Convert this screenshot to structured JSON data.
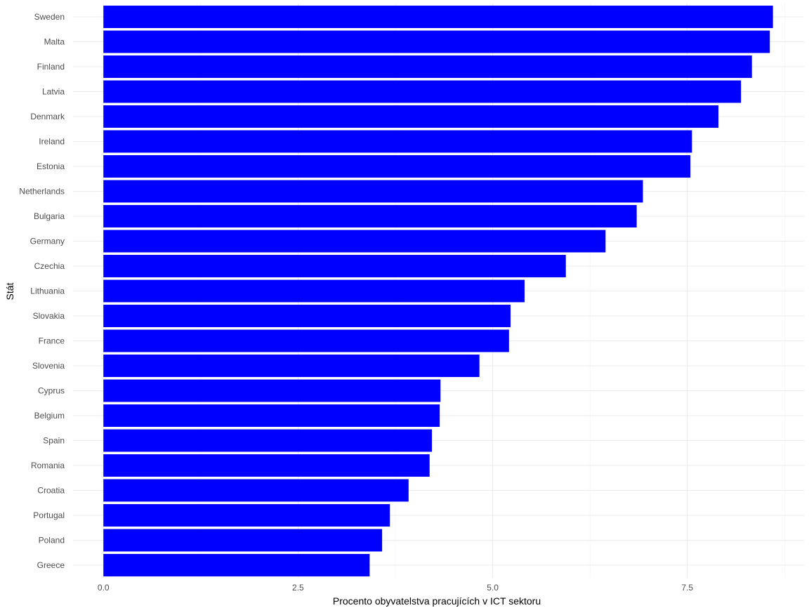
{
  "chart_data": {
    "type": "bar",
    "orientation": "horizontal",
    "xlabel": "Procento obyvatelstva pracujících v ICT sektoru",
    "ylabel": "Stát",
    "xlim": [
      -0.39,
      9.0
    ],
    "x_ticks": [
      0.0,
      2.5,
      5.0,
      7.5
    ],
    "x_tick_labels": [
      "0.0",
      "2.5",
      "5.0",
      "7.5"
    ],
    "grid": true,
    "legend": "none",
    "bar_color": "#0000ff",
    "categories": [
      "Sweden",
      "Malta",
      "Finland",
      "Latvia",
      "Denmark",
      "Ireland",
      "Estonia",
      "Netherlands",
      "Bulgaria",
      "Germany",
      "Czechia",
      "Lithuania",
      "Slovakia",
      "France",
      "Slovenia",
      "Cyprus",
      "Belgium",
      "Spain",
      "Romania",
      "Croatia",
      "Portugal",
      "Poland",
      "Greece"
    ],
    "values": [
      8.6,
      8.56,
      8.33,
      8.19,
      7.9,
      7.56,
      7.54,
      6.93,
      6.85,
      6.45,
      5.94,
      5.41,
      5.23,
      5.21,
      4.83,
      4.33,
      4.32,
      4.22,
      4.19,
      3.92,
      3.68,
      3.58,
      3.42
    ]
  }
}
